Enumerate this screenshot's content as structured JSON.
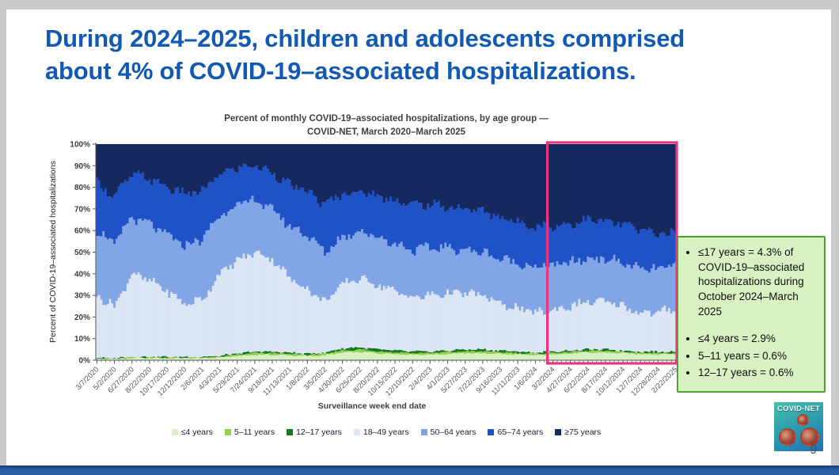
{
  "slide": {
    "title_lines": [
      "During 2024–2025, children and adolescents comprised",
      "about 4% of COVID-19–associated hospitalizations."
    ],
    "title_color": "#1159b4",
    "page_number": "9"
  },
  "chart_data": {
    "type": "area",
    "stacked": true,
    "normalized_percent": true,
    "title_lines": [
      "Percent of monthly COVID-19–associated hospitalizations, by age group —",
      "COVID-NET, March 2020–March 2025"
    ],
    "xlabel": "Surveillance week end date",
    "ylabel": "Percent of COVID-19–associated hospitalizations",
    "ylim": [
      0,
      100
    ],
    "y_ticks": [
      "0%",
      "10%",
      "20%",
      "30%",
      "40%",
      "50%",
      "60%",
      "70%",
      "80%",
      "90%",
      "100%"
    ],
    "legend_position": "bottom",
    "grid": false,
    "highlight_color": "#e8357f",
    "highlight_range": {
      "from": "3/2/2024",
      "to": "2/22/2025"
    },
    "x": [
      "3/7/2020",
      "5/2/2020",
      "6/27/2020",
      "8/22/2020",
      "10/17/2020",
      "12/12/2020",
      "2/6/2021",
      "4/3/2021",
      "5/29/2021",
      "7/24/2021",
      "9/18/2021",
      "11/13/2021",
      "1/8/2022",
      "3/5/2022",
      "4/30/2022",
      "6/25/2022",
      "8/20/2022",
      "10/15/2022",
      "12/10/2022",
      "2/4/2023",
      "4/1/2023",
      "5/27/2023",
      "7/22/2023",
      "9/16/2023",
      "11/11/2023",
      "1/6/2024",
      "3/2/2024",
      "4/27/2024",
      "6/22/2024",
      "8/17/2024",
      "10/12/2024",
      "12/7/2024",
      "12/28/2024",
      "2/22/2025"
    ],
    "series": [
      {
        "name": "≤4 years",
        "color": "#d9f0c3",
        "values": [
          0.6,
          0.6,
          0.9,
          0.9,
          0.9,
          0.9,
          0.9,
          1.2,
          1.9,
          2.5,
          2.5,
          2.2,
          1.9,
          2.2,
          3.5,
          3.8,
          3.2,
          2.9,
          2.6,
          2.6,
          2.9,
          3.2,
          3.2,
          2.9,
          2.6,
          2.3,
          2.7,
          3.1,
          3.5,
          3.5,
          3.2,
          2.8,
          2.8,
          2.8
        ]
      },
      {
        "name": "5–11 years",
        "color": "#92d050",
        "values": [
          0.2,
          0.2,
          0.3,
          0.3,
          0.3,
          0.3,
          0.3,
          0.4,
          0.6,
          0.8,
          0.8,
          0.7,
          0.6,
          0.7,
          1.0,
          1.1,
          0.9,
          0.8,
          0.7,
          0.7,
          0.8,
          0.9,
          0.9,
          0.8,
          0.7,
          0.6,
          0.7,
          0.7,
          0.8,
          0.8,
          0.7,
          0.6,
          0.6,
          0.6
        ]
      },
      {
        "name": "12–17 years",
        "color": "#177a22",
        "values": [
          0.2,
          0.2,
          0.3,
          0.3,
          0.3,
          0.3,
          0.3,
          0.4,
          0.5,
          0.7,
          0.7,
          0.6,
          0.5,
          0.6,
          1.0,
          1.1,
          0.9,
          0.8,
          0.7,
          0.7,
          0.8,
          0.9,
          0.9,
          0.8,
          0.7,
          0.6,
          0.6,
          0.7,
          0.7,
          0.7,
          0.6,
          0.6,
          0.6,
          0.6
        ]
      },
      {
        "name": "18–49 years",
        "color": "#dbe5f4",
        "values": [
          29,
          24,
          38.5,
          35.5,
          30.5,
          24.5,
          26.5,
          38,
          43,
          46,
          43,
          34.5,
          30,
          23.5,
          29.5,
          32,
          30,
          27.5,
          25,
          26,
          26.5,
          26,
          25,
          21.5,
          20,
          18.5,
          19,
          20.5,
          22,
          22,
          20.5,
          18,
          18,
          20
        ]
      },
      {
        "name": "50–64 years",
        "color": "#82a5e6",
        "values": [
          30,
          29,
          26,
          26,
          26,
          27,
          28,
          27,
          26,
          24,
          23,
          24,
          25,
          23,
          22,
          22,
          22,
          22,
          22,
          22,
          21,
          20,
          20,
          21,
          21,
          21,
          21,
          20,
          20,
          20,
          20,
          20,
          20,
          20
        ]
      },
      {
        "name": "65–74 years",
        "color": "#1f52c6",
        "values": [
          22,
          22,
          20,
          21,
          22,
          24,
          22,
          19,
          17,
          16,
          17,
          19,
          20,
          22,
          20,
          18,
          19,
          20,
          21,
          20,
          19,
          19,
          19,
          19,
          19,
          19,
          18,
          18,
          18,
          17,
          18,
          18,
          17,
          14
        ]
      },
      {
        "name": "≥75 years",
        "color": "#16295e",
        "values": [
          18,
          24,
          14,
          16,
          20,
          23,
          22,
          14,
          11,
          10,
          13,
          19,
          22,
          28,
          23,
          22,
          24,
          26,
          28,
          28,
          29,
          30,
          31,
          34,
          36,
          38,
          38,
          37,
          35,
          36,
          37,
          40,
          41,
          42
        ]
      }
    ]
  },
  "callout": {
    "bg": "#d8f1c3",
    "border": "#4ea12d",
    "items": [
      "≤17 years = 4.3% of COVID-19–associated hospitalizations during October 2024–March 2025",
      "≤4 years = 2.9%",
      "5–11 years = 0.6%",
      "12–17 years = 0.6%"
    ]
  },
  "logo": {
    "label": "COVID-NET"
  },
  "footer": {
    "bar_color": "#2c5fa4"
  }
}
